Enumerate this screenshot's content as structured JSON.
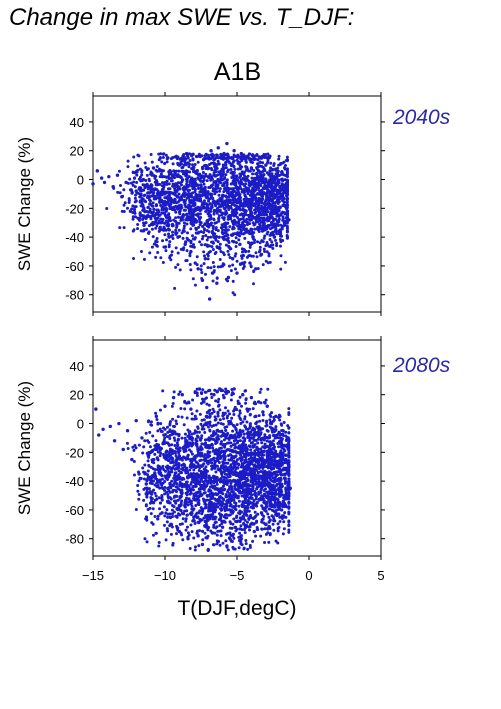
{
  "figure": {
    "title": "Change in max SWE vs. T_DJF:",
    "scenario": "A1B",
    "xlabel": "T(DJF,degC)",
    "ylabel": "SWE Change (%)",
    "point_color": "#1c1cc6",
    "period_color": "#2a2aa8"
  },
  "chart_data": [
    {
      "type": "scatter",
      "period": "2040s",
      "xlabel": "T(DJF,degC)",
      "ylabel": "SWE Change (%)",
      "xlim": [
        -15,
        5
      ],
      "ylim": [
        -92,
        58
      ],
      "xticks": [
        -15,
        -10,
        -5,
        0,
        5
      ],
      "yticks": [
        40,
        20,
        0,
        -20,
        -40,
        -60,
        -80
      ],
      "xticks_labeled": false,
      "grid": false,
      "color": "#1c1cc6",
      "points": [
        [
          -15.0,
          -3
        ],
        [
          -14.7,
          6
        ],
        [
          -14.4,
          1
        ],
        [
          -14.2,
          -2
        ],
        [
          -13.9,
          2
        ],
        [
          -13.6,
          -5
        ],
        [
          -13.3,
          3
        ],
        [
          -13.0,
          -12
        ],
        [
          -12.7,
          -2
        ],
        [
          -12.4,
          -22
        ],
        [
          -12.2,
          5
        ],
        [
          -12.0,
          -8
        ],
        [
          -11.7,
          -15
        ],
        [
          -11.5,
          0
        ],
        [
          -11.2,
          -25
        ],
        [
          -11.0,
          -5
        ],
        [
          -10.8,
          8
        ],
        [
          -10.6,
          -18
        ],
        [
          -10.4,
          -30
        ],
        [
          -10.2,
          2
        ],
        [
          -10.0,
          -10
        ],
        [
          -9.8,
          15
        ],
        [
          -9.7,
          -35
        ],
        [
          -9.5,
          -20
        ],
        [
          -9.3,
          5
        ],
        [
          -9.1,
          -40
        ],
        [
          -9.0,
          10
        ],
        [
          -8.8,
          -28
        ],
        [
          -8.6,
          -45
        ],
        [
          -8.5,
          18
        ],
        [
          -8.3,
          -12
        ],
        [
          -8.2,
          -50
        ],
        [
          -8.0,
          0
        ],
        [
          -7.9,
          -58
        ],
        [
          -7.8,
          16
        ],
        [
          -7.7,
          -62
        ],
        [
          -7.5,
          -30
        ],
        [
          -7.4,
          -70
        ],
        [
          -7.3,
          14
        ],
        [
          -7.2,
          -55
        ],
        [
          -7.1,
          -75
        ],
        [
          -7.0,
          -20
        ],
        [
          -6.9,
          -83
        ],
        [
          -6.8,
          20
        ],
        [
          -6.7,
          -65
        ],
        [
          -6.6,
          -40
        ],
        [
          -6.5,
          10
        ],
        [
          -6.4,
          -72
        ],
        [
          -6.3,
          22
        ],
        [
          -6.2,
          -48
        ],
        [
          -6.1,
          0
        ],
        [
          -6.0,
          -60
        ],
        [
          -5.9,
          18
        ],
        [
          -5.8,
          -35
        ],
        [
          -5.7,
          25
        ],
        [
          -5.6,
          -68
        ],
        [
          -5.5,
          -10
        ],
        [
          -5.4,
          15
        ],
        [
          -5.3,
          -55
        ],
        [
          -5.2,
          20
        ],
        [
          -5.1,
          -25
        ],
        [
          -5.0,
          -65
        ],
        [
          -4.9,
          12
        ],
        [
          -4.8,
          -45
        ],
        [
          -4.7,
          18
        ],
        [
          -4.6,
          -30
        ],
        [
          -4.5,
          5
        ],
        [
          -4.4,
          -50
        ],
        [
          -4.3,
          16
        ],
        [
          -4.2,
          -15
        ],
        [
          -4.1,
          -58
        ],
        [
          -4.0,
          8
        ],
        [
          -3.9,
          -40
        ],
        [
          -3.8,
          14
        ],
        [
          -3.7,
          -62
        ],
        [
          -3.6,
          -5
        ],
        [
          -3.5,
          -35
        ],
        [
          -3.4,
          12
        ],
        [
          -3.3,
          -52
        ],
        [
          -3.2,
          0
        ],
        [
          -3.1,
          -20
        ],
        [
          -3.0,
          10
        ],
        [
          -2.9,
          -45
        ],
        [
          -2.8,
          -8
        ],
        [
          -2.7,
          6
        ],
        [
          -2.6,
          -30
        ],
        [
          -2.5,
          2
        ],
        [
          -2.4,
          -40
        ],
        [
          -2.3,
          -12
        ],
        [
          -2.2,
          4
        ],
        [
          -2.1,
          -25
        ],
        [
          -2.0,
          -35
        ],
        [
          -1.9,
          0
        ],
        [
          -1.8,
          -18
        ],
        [
          -1.7,
          -30
        ],
        [
          -1.6,
          -5
        ],
        [
          -1.5,
          -22
        ],
        [
          -1.4,
          -28
        ]
      ]
    },
    {
      "type": "scatter",
      "period": "2080s",
      "xlabel": "T(DJF,degC)",
      "ylabel": "SWE Change (%)",
      "xlim": [
        -15,
        5
      ],
      "ylim": [
        -92,
        58
      ],
      "xticks": [
        -15,
        -10,
        -5,
        0,
        5
      ],
      "yticks": [
        40,
        20,
        0,
        -20,
        -40,
        -60,
        -80
      ],
      "xticks_labeled": true,
      "grid": false,
      "color": "#1c1cc6",
      "points": [
        [
          -14.8,
          10
        ],
        [
          -14.6,
          -8
        ],
        [
          -14.3,
          -4
        ],
        [
          -13.8,
          -2
        ],
        [
          -13.5,
          -12
        ],
        [
          -13.2,
          0
        ],
        [
          -12.9,
          -18
        ],
        [
          -12.6,
          -5
        ],
        [
          -12.3,
          -25
        ],
        [
          -12.0,
          2
        ],
        [
          -11.8,
          -35
        ],
        [
          -11.6,
          -10
        ],
        [
          -11.3,
          -42
        ],
        [
          -11.0,
          -20
        ],
        [
          -10.8,
          -55
        ],
        [
          -10.6,
          5
        ],
        [
          -10.4,
          -30
        ],
        [
          -10.2,
          -62
        ],
        [
          -10.0,
          12
        ],
        [
          -9.8,
          -45
        ],
        [
          -9.6,
          -70
        ],
        [
          -9.4,
          18
        ],
        [
          -9.2,
          -38
        ],
        [
          -9.0,
          -75
        ],
        [
          -8.8,
          20
        ],
        [
          -8.6,
          -55
        ],
        [
          -8.4,
          -80
        ],
        [
          -8.2,
          10
        ],
        [
          -8.0,
          -65
        ],
        [
          -7.9,
          22
        ],
        [
          -7.8,
          -30
        ],
        [
          -7.7,
          -78
        ],
        [
          -7.6,
          24
        ],
        [
          -7.5,
          -50
        ],
        [
          -7.4,
          -84
        ],
        [
          -7.3,
          15
        ],
        [
          -7.2,
          -68
        ],
        [
          -7.1,
          5
        ],
        [
          -7.0,
          -88
        ],
        [
          -6.9,
          23
        ],
        [
          -6.8,
          -40
        ],
        [
          -6.7,
          -76
        ],
        [
          -6.6,
          20
        ],
        [
          -6.5,
          -60
        ],
        [
          -6.4,
          -10
        ],
        [
          -6.3,
          -82
        ],
        [
          -6.2,
          24
        ],
        [
          -6.1,
          -48
        ],
        [
          -6.0,
          -72
        ],
        [
          -5.9,
          18
        ],
        [
          -5.8,
          -30
        ],
        [
          -5.7,
          -85
        ],
        [
          -5.6,
          22
        ],
        [
          -5.5,
          -55
        ],
        [
          -5.4,
          0
        ],
        [
          -5.3,
          -78
        ],
        [
          -5.2,
          24
        ],
        [
          -5.1,
          -40
        ],
        [
          -5.0,
          -68
        ],
        [
          -4.9,
          14
        ],
        [
          -4.8,
          -20
        ],
        [
          -4.7,
          -80
        ],
        [
          -4.6,
          20
        ],
        [
          -4.5,
          -50
        ],
        [
          -4.4,
          -72
        ],
        [
          -4.3,
          10
        ],
        [
          -4.2,
          -35
        ],
        [
          -4.1,
          -65
        ],
        [
          -4.0,
          18
        ],
        [
          -3.9,
          -45
        ],
        [
          -3.8,
          -75
        ],
        [
          -3.7,
          5
        ],
        [
          -3.6,
          -55
        ],
        [
          -3.5,
          15
        ],
        [
          -3.4,
          -30
        ],
        [
          -3.3,
          -62
        ],
        [
          -3.2,
          8
        ],
        [
          -3.1,
          -40
        ],
        [
          -3.0,
          -70
        ],
        [
          -2.9,
          12
        ],
        [
          -2.8,
          -20
        ],
        [
          -2.7,
          -52
        ],
        [
          -2.6,
          0
        ],
        [
          -2.5,
          -35
        ],
        [
          -2.4,
          -58
        ],
        [
          -2.3,
          5
        ],
        [
          -2.2,
          -28
        ],
        [
          -2.1,
          -45
        ],
        [
          -2.0,
          -10
        ],
        [
          -1.9,
          -60
        ],
        [
          -1.8,
          -5
        ],
        [
          -1.7,
          -38
        ],
        [
          -1.6,
          -22
        ],
        [
          -1.5,
          -52
        ],
        [
          -1.4,
          -30
        ],
        [
          -1.3,
          -45
        ]
      ]
    }
  ]
}
